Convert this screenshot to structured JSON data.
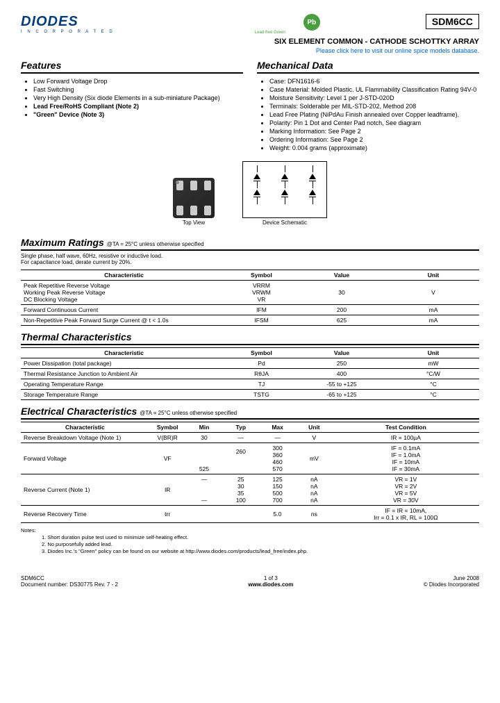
{
  "header": {
    "logo": "DIODES",
    "logo_sub": "I N C O R P O R A T E D",
    "pb": "Pb",
    "pb_label": "Lead-free Green",
    "part": "SDM6CC",
    "title": "SIX ELEMENT COMMON - CATHODE SCHOTTKY ARRAY",
    "link": "Please click here to visit our online spice models database."
  },
  "features": {
    "title": "Features",
    "items": [
      "Low Forward Voltage Drop",
      "Fast Switching",
      "Very High Density (Six diode Elements in a sub-miniature Package)",
      "Lead Free/RoHS Compliant (Note 2)",
      "\"Green\" Device (Note 3)"
    ]
  },
  "mechanical": {
    "title": "Mechanical Data",
    "items": [
      "Case: DFN1616-6",
      "Case Material: Molded Plastic. UL Flammability Classification Rating 94V-0",
      "Moisture Sensitivity: Level 1 per J-STD-020D",
      "Terminals: Solderable per MIL-STD-202, Method 208",
      "Lead Free Plating (NiPdAu Finish annealed over Copper leadframe).",
      "Polarity: Pin 1 Dot and Center Pad notch, See diagram",
      "Marking Information: See Page 2",
      "Ordering Information: See Page 2",
      "Weight: 0.004 grams (approximate)"
    ]
  },
  "diagrams": {
    "top_view": "Top View",
    "schematic": "Device Schematic"
  },
  "max_ratings": {
    "title": "Maximum Ratings",
    "cond": "@TA = 25°C unless otherwise specified",
    "sub": "Single phase, half wave, 60Hz, resistive or inductive load.\nFor capacitance load, derate current by 20%.",
    "headers": [
      "Characteristic",
      "Symbol",
      "Value",
      "Unit"
    ],
    "rows": [
      [
        "Peak Repetitive Reverse Voltage\nWorking Peak Reverse Voltage\nDC Blocking Voltage",
        "VRRM\nVRWM\nVR",
        "30",
        "V"
      ],
      [
        "Forward Continuous Current",
        "IFM",
        "200",
        "mA"
      ],
      [
        "Non-Repetitive Peak Forward Surge Current      @ t < 1.0s",
        "IFSM",
        "625",
        "mA"
      ]
    ]
  },
  "thermal": {
    "title": "Thermal Characteristics",
    "headers": [
      "Characteristic",
      "Symbol",
      "Value",
      "Unit"
    ],
    "rows": [
      [
        "Power Dissipation (total package)",
        "Pd",
        "250",
        "mW"
      ],
      [
        "Thermal Resistance Junction to Ambient Air",
        "RθJA",
        "400",
        "°C/W"
      ],
      [
        "Operating Temperature Range",
        "TJ",
        "-55 to +125",
        "°C"
      ],
      [
        "Storage Temperature Range",
        "TSTG",
        "-65 to +125",
        "°C"
      ]
    ]
  },
  "electrical": {
    "title": "Electrical Characteristics",
    "cond": "@TA = 25°C unless otherwise specified",
    "headers": [
      "Characteristic",
      "Symbol",
      "Min",
      "Typ",
      "Max",
      "Unit",
      "Test Condition"
    ],
    "rows": [
      [
        "Reverse Breakdown Voltage (Note 1)",
        "V(BR)R",
        "30",
        "—",
        "—",
        "V",
        "IR = 100µA"
      ],
      [
        "Forward Voltage",
        "VF",
        "\n\n\n525",
        "260\n\n\n",
        "300\n360\n460\n570",
        "mV",
        "IF = 0.1mA\nIF = 1.0mA\nIF = 10mA\nIF = 30mA"
      ],
      [
        "Reverse Current (Note 1)",
        "IR",
        "—\n\n\n—",
        "25\n30\n35\n100",
        "125\n150\n500\n700",
        "nA\nnA\nnA\nnA",
        "VR = 1V\nVR = 2V\nVR = 5V\nVR = 30V"
      ],
      [
        "Reverse Recovery Time",
        "trr",
        "",
        "",
        "5.0",
        "ns",
        "IF = IR = 10mA,\nIrr = 0.1 x IR, RL = 100Ω"
      ]
    ]
  },
  "notes": {
    "label": "Notes:",
    "items": [
      "1.   Short duration pulse test used to minimize self-heating effect.",
      "2.   No purposefully added lead.",
      "3.   Diodes Inc.'s \"Green\" policy can be found on our website at http://www.diodes.com/products/lead_free/index.php."
    ]
  },
  "footer": {
    "part": "SDM6CC",
    "doc": "Document number: DS30775 Rev. 7 - 2",
    "page": "1 of 3",
    "url": "www.diodes.com",
    "date": "June 2008",
    "copyright": "© Diodes Incorporated"
  }
}
